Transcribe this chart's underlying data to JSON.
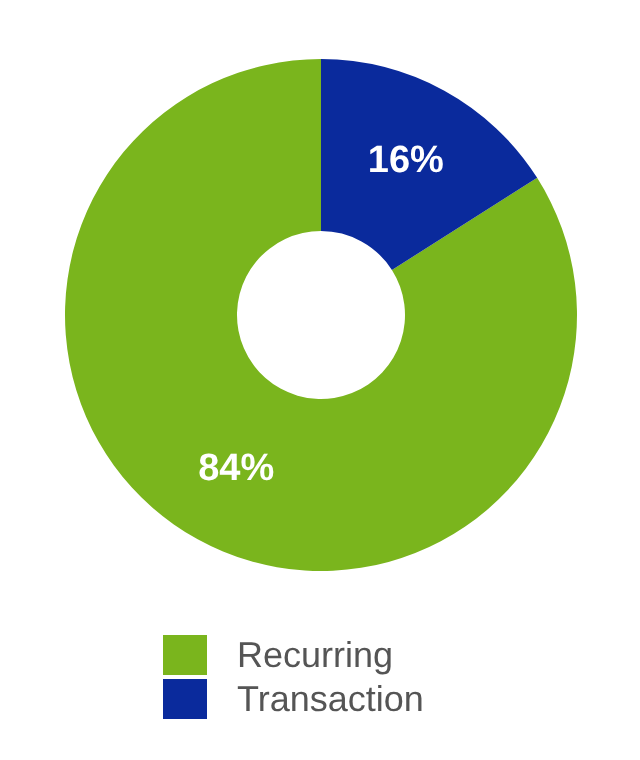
{
  "chart_data": {
    "type": "donut",
    "categories": [
      "Recurring",
      "Transaction"
    ],
    "values": [
      84,
      16
    ],
    "colors": [
      "#7ab51d",
      "#0a2a9c"
    ],
    "value_labels": [
      "84%",
      "16%"
    ],
    "legend": "bottom"
  }
}
